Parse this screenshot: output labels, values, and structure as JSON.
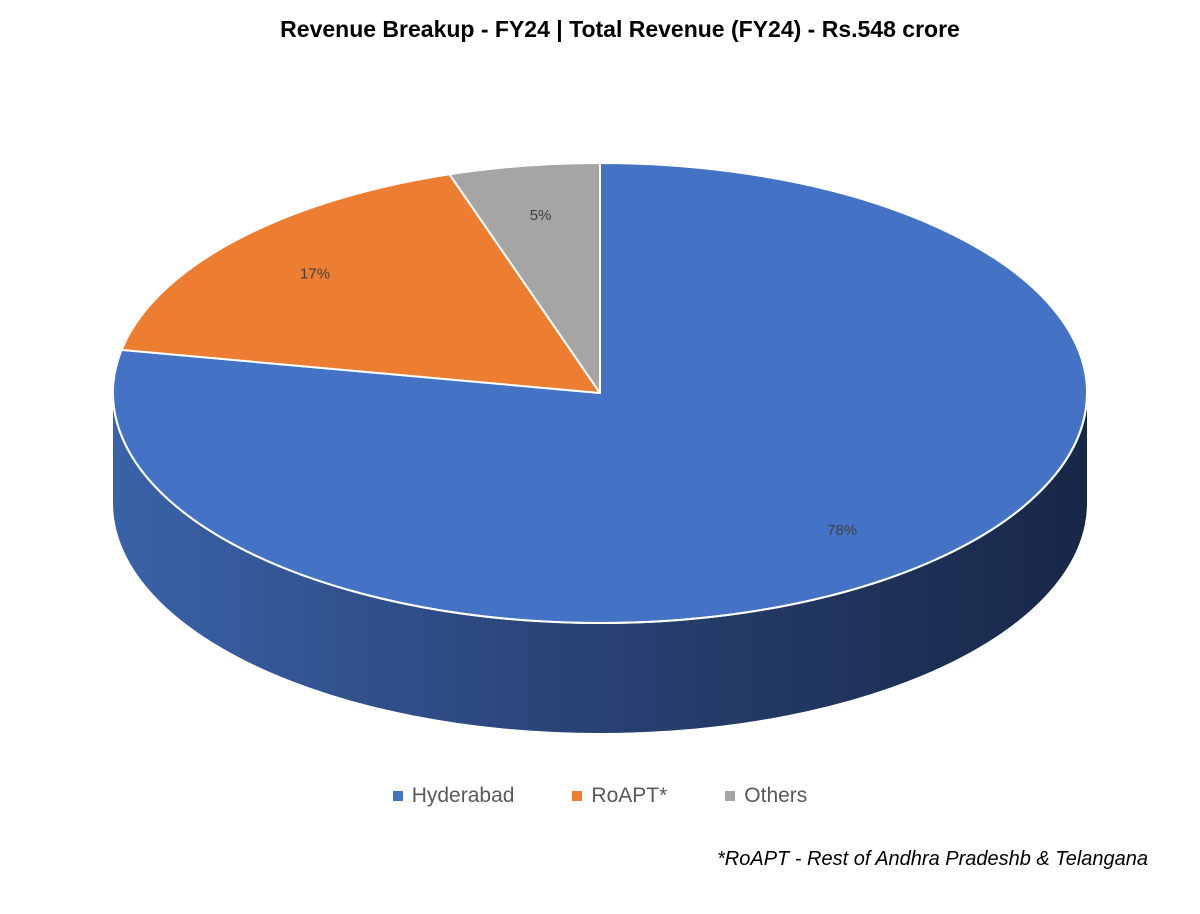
{
  "chart_data": {
    "type": "pie",
    "title": "Revenue Breakup - FY24 | Total Revenue (FY24) - Rs.548 crore",
    "three_d": true,
    "start_angle": "top (12 o'clock), clockwise",
    "slices": [
      {
        "name": "Hyderabad",
        "value": 78,
        "label": "78%",
        "color": "#4472C4",
        "side_color": "#2F4E8A"
      },
      {
        "name": "RoAPT*",
        "value": 17,
        "label": "17%",
        "color": "#ED7D31",
        "side_color": "#B35E24"
      },
      {
        "name": "Others",
        "value": 5,
        "label": "5%",
        "color": "#A5A5A5",
        "side_color": "#7B7B7B"
      }
    ],
    "legend_position": "bottom",
    "footnote": "*RoAPT - Rest of Andhra Pradeshb & Telangana"
  }
}
